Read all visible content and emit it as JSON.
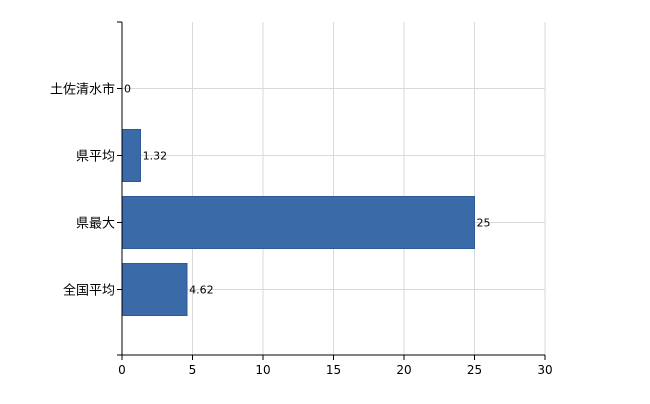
{
  "chart_data": {
    "type": "bar",
    "orientation": "horizontal",
    "categories": [
      "土佐清水市",
      "県平均",
      "県最大",
      "全国平均"
    ],
    "values": [
      0,
      1.32,
      25,
      4.62
    ],
    "value_labels": [
      "0",
      "1.32",
      "25",
      "4.62"
    ],
    "xlim": [
      0,
      30
    ],
    "xticks": [
      0,
      5,
      10,
      15,
      20,
      25,
      30
    ],
    "grid": true,
    "legend": "none",
    "colors": {
      "bar": "#3a6aa8",
      "bar_border": "#2d5a96",
      "grid": "#d9d9d9",
      "axis": "#000000"
    }
  }
}
